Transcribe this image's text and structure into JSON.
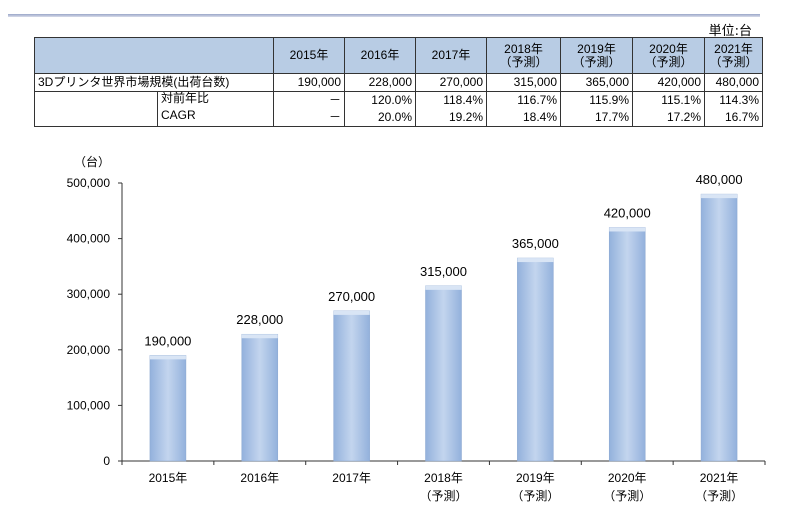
{
  "unit": "単位:台",
  "table": {
    "headers": [
      "2015年",
      "2016年",
      "2017年",
      "2018年\n（予測）",
      "2019年\n（予測）",
      "2020年\n（予測）",
      "2021年\n（予測）"
    ],
    "rows": [
      {
        "label": "3Dプリンタ世界市場規模(出荷台数)",
        "values": [
          "190,000",
          "228,000",
          "270,000",
          "315,000",
          "365,000",
          "420,000",
          "480,000"
        ]
      },
      {
        "label": "対前年比",
        "values": [
          "－",
          "120.0%",
          "118.4%",
          "116.7%",
          "115.9%",
          "115.1%",
          "114.3%"
        ]
      },
      {
        "label": "CAGR",
        "values": [
          "－",
          "20.0%",
          "19.2%",
          "18.4%",
          "17.7%",
          "17.2%",
          "16.7%"
        ]
      }
    ]
  },
  "chart_data": {
    "type": "bar",
    "ylabel": "（台）",
    "categories": [
      "2015年",
      "2016年",
      "2017年",
      "2018年\n（予測）",
      "2019年\n（予測）",
      "2020年\n（予測）",
      "2021年\n（予測）"
    ],
    "values": [
      190000,
      228000,
      270000,
      315000,
      365000,
      420000,
      480000
    ],
    "value_labels": [
      "190,000",
      "228,000",
      "270,000",
      "315,000",
      "365,000",
      "420,000",
      "480,000"
    ],
    "yticks": [
      "0",
      "100,000",
      "200,000",
      "300,000",
      "400,000",
      "500,000"
    ],
    "ylim": [
      0,
      500000
    ],
    "bar_color": "#a7c0e4"
  }
}
